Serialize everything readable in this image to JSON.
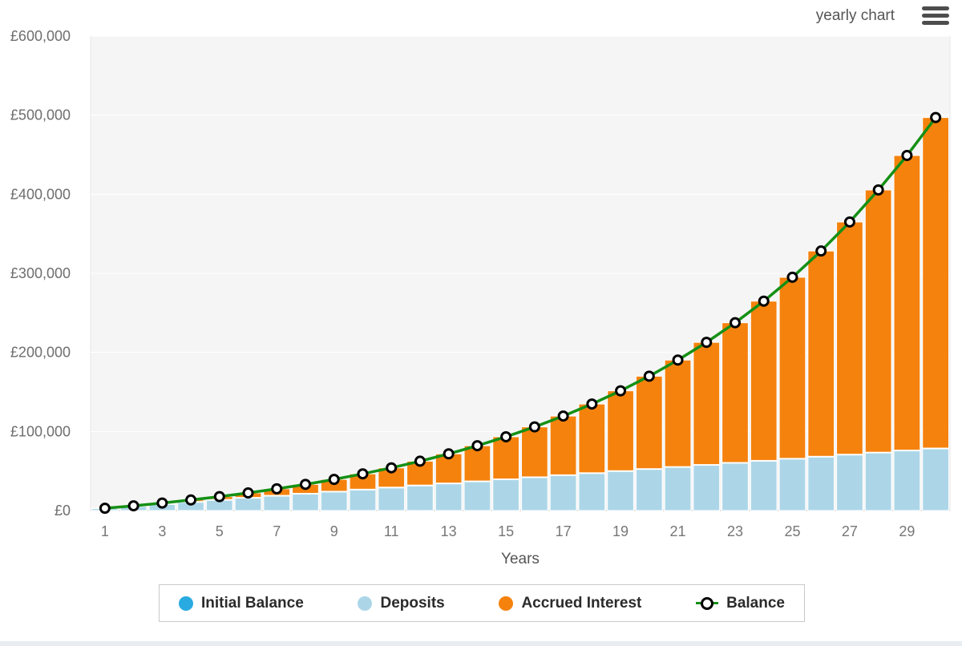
{
  "header": {
    "chart_mode_label": "yearly chart"
  },
  "colors": {
    "initial_balance": "#29ABE2",
    "deposits": "#ACD6E8",
    "accrued_interest": "#F5820D",
    "balance_line": "#159015",
    "marker_fill": "#FFFFFF",
    "marker_ring": "#000000",
    "plot_background": "#F5F5F5",
    "gridline": "#FFFFFF",
    "axis_text": "#6E6E6E",
    "bottom_strip": "#E9EDF2"
  },
  "legend": {
    "items": [
      {
        "label": "Initial Balance",
        "swatch": "initial-balance-swatch"
      },
      {
        "label": "Deposits",
        "swatch": "deposits-swatch"
      },
      {
        "label": "Accrued Interest",
        "swatch": "accrued-interest-swatch"
      },
      {
        "label": "Balance",
        "swatch": "balance-marker-icon"
      }
    ]
  },
  "chart_data": {
    "type": "bar",
    "subtype": "stacked-bars-with-line",
    "title": "",
    "xlabel": "Years",
    "ylabel": "",
    "currency": "£",
    "ylim": [
      0,
      600000
    ],
    "grid": true,
    "legend_position": "bottom",
    "y_tick_labels": [
      "£0",
      "£100,000",
      "£200,000",
      "£300,000",
      "£400,000",
      "£500,000",
      "£600,000"
    ],
    "y_tick_values": [
      0,
      100000,
      200000,
      300000,
      400000,
      500000,
      600000
    ],
    "x_tick_labels_shown": [
      1,
      3,
      5,
      7,
      9,
      11,
      13,
      15,
      17,
      19,
      21,
      23,
      25,
      27,
      29
    ],
    "categories": [
      1,
      2,
      3,
      4,
      5,
      6,
      7,
      8,
      9,
      10,
      11,
      12,
      13,
      14,
      15,
      16,
      17,
      18,
      19,
      20,
      21,
      22,
      23,
      24,
      25,
      26,
      27,
      28,
      29,
      30
    ],
    "series": [
      {
        "name": "Initial Balance",
        "render": "bar",
        "color": "#29ABE2",
        "values": [
          0,
          0,
          0,
          0,
          0,
          0,
          0,
          0,
          0,
          0,
          0,
          0,
          0,
          0,
          0,
          0,
          0,
          0,
          0,
          0,
          0,
          0,
          0,
          0,
          0,
          0,
          0,
          0,
          0,
          0
        ]
      },
      {
        "name": "Deposits",
        "render": "bar",
        "color": "#ACD6E8",
        "values": [
          2600,
          5200,
          7800,
          10400,
          13000,
          15600,
          18200,
          20800,
          23400,
          26000,
          28600,
          31200,
          33800,
          36400,
          39000,
          41600,
          44200,
          46800,
          49400,
          52000,
          54600,
          57200,
          59800,
          62400,
          65000,
          67600,
          70200,
          72800,
          75400,
          78000
        ]
      },
      {
        "name": "Accrued Interest",
        "render": "bar",
        "color": "#F5820D",
        "values": [
          300,
          800,
          1700,
          3000,
          4600,
          6700,
          9300,
          12300,
          16000,
          20400,
          25400,
          31200,
          37900,
          45600,
          54300,
          64200,
          75300,
          87900,
          102000,
          117900,
          135700,
          155500,
          177700,
          202400,
          230000,
          260600,
          294700,
          332600,
          373600,
          419000
        ]
      },
      {
        "name": "Balance",
        "render": "line",
        "color": "#159015",
        "values": [
          2900,
          6000,
          9500,
          13400,
          17600,
          22300,
          27500,
          33100,
          39400,
          46400,
          54000,
          62400,
          71700,
          82000,
          93300,
          105800,
          119500,
          134700,
          151400,
          169900,
          190300,
          212700,
          237500,
          264800,
          295000,
          328200,
          364900,
          405400,
          449000,
          497000
        ]
      }
    ]
  }
}
